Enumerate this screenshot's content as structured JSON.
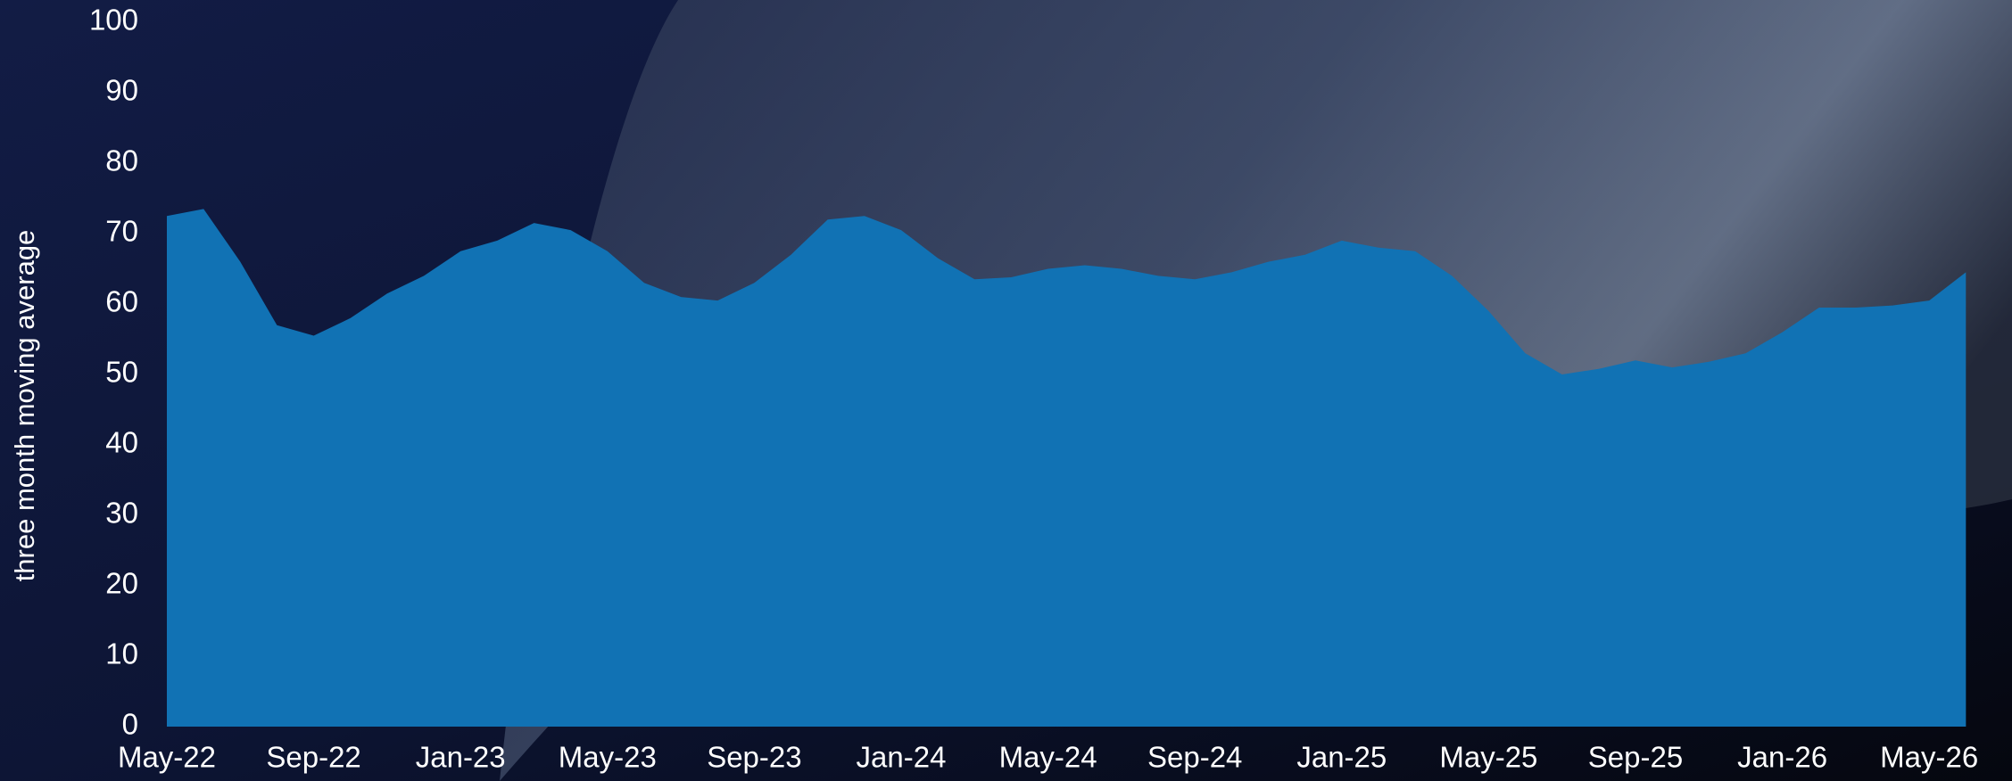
{
  "chart_data": {
    "type": "area",
    "y_label": "three month moving average",
    "categories": [
      "May-22",
      null,
      null,
      null,
      "Sep-22",
      null,
      null,
      null,
      "Jan-23",
      null,
      null,
      null,
      "May-23",
      null,
      null,
      null,
      "Sep-23",
      null,
      null,
      null,
      "Jan-24",
      null,
      null,
      null,
      "May-24",
      null,
      null,
      null,
      "Sep-24",
      null,
      null,
      null,
      "Jan-25",
      null,
      null,
      null,
      "May-25",
      null,
      null,
      null,
      "Sep-25",
      null,
      null,
      null,
      "Jan-26",
      null,
      null,
      null,
      "May-26",
      null
    ],
    "values": [
      72.5,
      73.5,
      66,
      57,
      55.5,
      58,
      61.5,
      64,
      67.5,
      69,
      71.5,
      70.5,
      67.5,
      63,
      61,
      60.5,
      63,
      67,
      72,
      72.5,
      70.5,
      66.5,
      63.5,
      63.8,
      65,
      65.5,
      65,
      64,
      63.5,
      64.5,
      66,
      67,
      69,
      68,
      67.5,
      64,
      59,
      53,
      50,
      50.8,
      52,
      51,
      51.8,
      53,
      56,
      59.5,
      59.5,
      59.8,
      60.5,
      64.5
    ],
    "color": "#1172b4",
    "ylim": [
      0,
      100
    ],
    "yticks": [
      0,
      10,
      20,
      30,
      40,
      50,
      60,
      70,
      80,
      90,
      100
    ],
    "grid": false
  }
}
